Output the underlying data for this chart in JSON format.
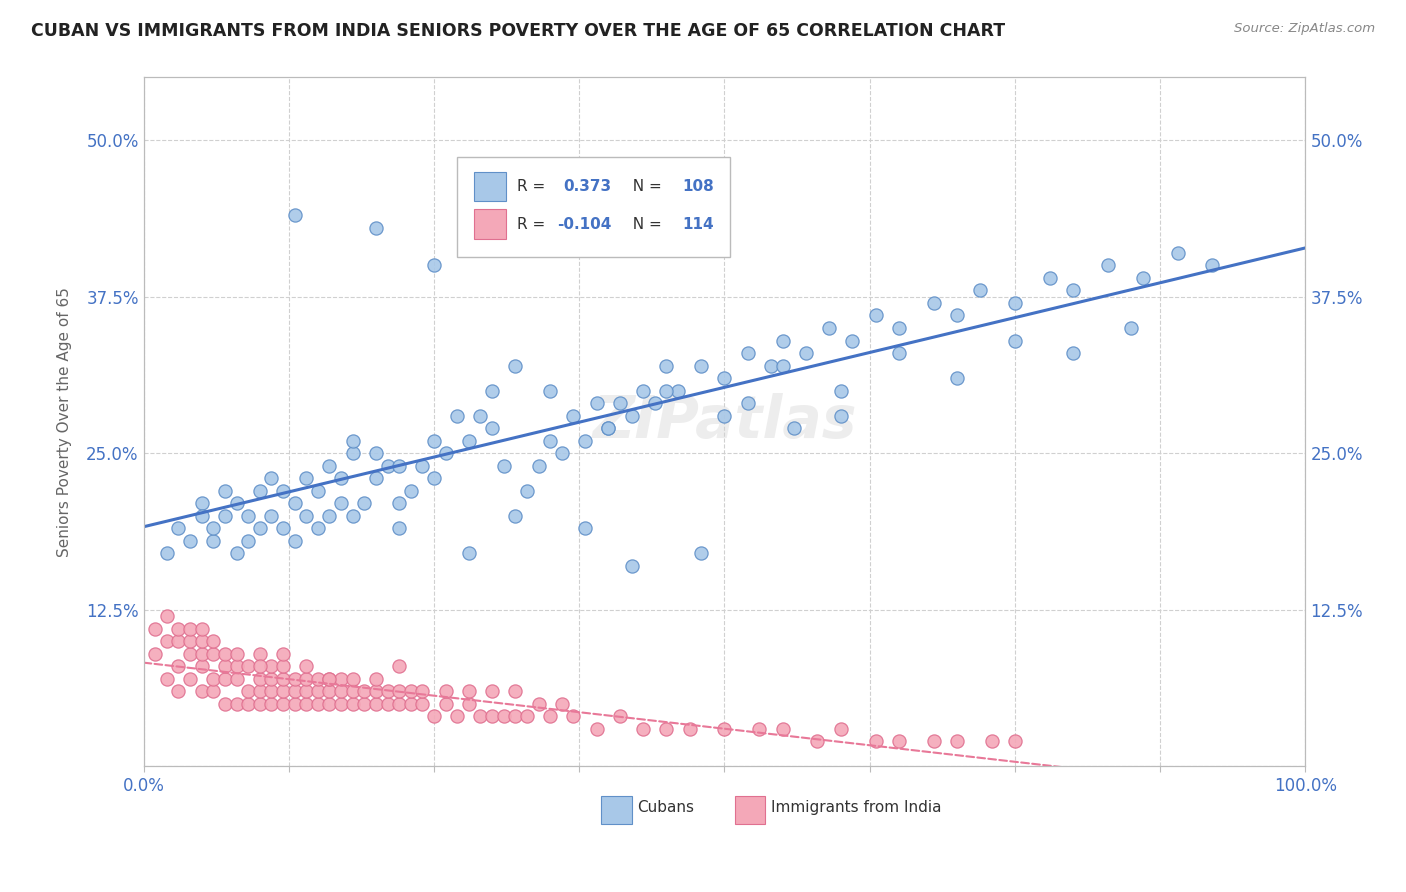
{
  "title": "CUBAN VS IMMIGRANTS FROM INDIA SENIORS POVERTY OVER THE AGE OF 65 CORRELATION CHART",
  "source_text": "Source: ZipAtlas.com",
  "ylabel": "Seniors Poverty Over the Age of 65",
  "xlim": [
    0.0,
    1.0
  ],
  "ylim": [
    0.0,
    0.55
  ],
  "xticks": [
    0.0,
    0.125,
    0.25,
    0.375,
    0.5,
    0.625,
    0.75,
    0.875,
    1.0
  ],
  "xticklabels": [
    "0.0%",
    "",
    "",
    "",
    "",
    "",
    "",
    "",
    "100.0%"
  ],
  "yticks": [
    0.0,
    0.125,
    0.25,
    0.375,
    0.5
  ],
  "yticklabels": [
    "",
    "12.5%",
    "25.0%",
    "37.5%",
    "50.0%"
  ],
  "watermark": "ZIPatlas",
  "legend_label1": "Cubans",
  "legend_label2": "Immigrants from India",
  "cuban_color": "#a8c8e8",
  "india_color": "#f4a8b8",
  "cuban_edge_color": "#6090c8",
  "india_edge_color": "#e07090",
  "cuban_line_color": "#4472c4",
  "india_line_color": "#e87898",
  "background_color": "#ffffff",
  "grid_color": "#d0d0d0",
  "title_color": "#222222",
  "axis_label_color": "#666666",
  "tick_label_color": "#4472c4",
  "r1_val": "0.373",
  "n1_val": "108",
  "r2_val": "-0.104",
  "n2_val": "114",
  "cuban_scatter_x": [
    0.02,
    0.03,
    0.04,
    0.05,
    0.05,
    0.06,
    0.06,
    0.07,
    0.07,
    0.08,
    0.08,
    0.09,
    0.09,
    0.1,
    0.1,
    0.11,
    0.11,
    0.12,
    0.12,
    0.13,
    0.13,
    0.14,
    0.14,
    0.15,
    0.15,
    0.16,
    0.16,
    0.17,
    0.17,
    0.18,
    0.18,
    0.19,
    0.2,
    0.2,
    0.21,
    0.22,
    0.22,
    0.23,
    0.24,
    0.25,
    0.25,
    0.26,
    0.27,
    0.28,
    0.29,
    0.3,
    0.3,
    0.31,
    0.32,
    0.33,
    0.34,
    0.35,
    0.36,
    0.37,
    0.38,
    0.39,
    0.4,
    0.41,
    0.42,
    0.43,
    0.44,
    0.45,
    0.46,
    0.48,
    0.5,
    0.52,
    0.54,
    0.55,
    0.57,
    0.59,
    0.61,
    0.63,
    0.65,
    0.68,
    0.7,
    0.72,
    0.75,
    0.78,
    0.8,
    0.83,
    0.86,
    0.89,
    0.92,
    0.2,
    0.25,
    0.3,
    0.35,
    0.4,
    0.45,
    0.5,
    0.55,
    0.6,
    0.65,
    0.7,
    0.75,
    0.8,
    0.85,
    0.13,
    0.18,
    0.22,
    0.28,
    0.32,
    0.38,
    0.42,
    0.48,
    0.52,
    0.56,
    0.6
  ],
  "cuban_scatter_y": [
    0.17,
    0.19,
    0.18,
    0.21,
    0.2,
    0.18,
    0.19,
    0.22,
    0.2,
    0.17,
    0.21,
    0.18,
    0.2,
    0.22,
    0.19,
    0.2,
    0.23,
    0.19,
    0.22,
    0.18,
    0.21,
    0.2,
    0.23,
    0.19,
    0.22,
    0.2,
    0.24,
    0.21,
    0.23,
    0.2,
    0.25,
    0.21,
    0.23,
    0.25,
    0.24,
    0.21,
    0.24,
    0.22,
    0.24,
    0.23,
    0.26,
    0.25,
    0.28,
    0.26,
    0.28,
    0.27,
    0.3,
    0.24,
    0.32,
    0.22,
    0.24,
    0.26,
    0.25,
    0.28,
    0.26,
    0.29,
    0.27,
    0.29,
    0.28,
    0.3,
    0.29,
    0.32,
    0.3,
    0.32,
    0.31,
    0.33,
    0.32,
    0.34,
    0.33,
    0.35,
    0.34,
    0.36,
    0.35,
    0.37,
    0.36,
    0.38,
    0.37,
    0.39,
    0.38,
    0.4,
    0.39,
    0.41,
    0.4,
    0.43,
    0.4,
    0.44,
    0.3,
    0.27,
    0.3,
    0.28,
    0.32,
    0.3,
    0.33,
    0.31,
    0.34,
    0.33,
    0.35,
    0.44,
    0.26,
    0.19,
    0.17,
    0.2,
    0.19,
    0.16,
    0.17,
    0.29,
    0.27,
    0.28
  ],
  "india_scatter_x": [
    0.01,
    0.01,
    0.02,
    0.02,
    0.02,
    0.03,
    0.03,
    0.03,
    0.03,
    0.04,
    0.04,
    0.04,
    0.04,
    0.05,
    0.05,
    0.05,
    0.05,
    0.05,
    0.06,
    0.06,
    0.06,
    0.06,
    0.07,
    0.07,
    0.07,
    0.07,
    0.08,
    0.08,
    0.08,
    0.08,
    0.09,
    0.09,
    0.09,
    0.1,
    0.1,
    0.1,
    0.1,
    0.11,
    0.11,
    0.11,
    0.11,
    0.12,
    0.12,
    0.12,
    0.12,
    0.13,
    0.13,
    0.13,
    0.14,
    0.14,
    0.14,
    0.15,
    0.15,
    0.15,
    0.16,
    0.16,
    0.16,
    0.17,
    0.17,
    0.17,
    0.18,
    0.18,
    0.19,
    0.19,
    0.2,
    0.2,
    0.21,
    0.21,
    0.22,
    0.22,
    0.23,
    0.23,
    0.24,
    0.25,
    0.26,
    0.27,
    0.28,
    0.29,
    0.3,
    0.31,
    0.32,
    0.33,
    0.35,
    0.37,
    0.39,
    0.41,
    0.43,
    0.45,
    0.47,
    0.5,
    0.53,
    0.55,
    0.58,
    0.6,
    0.63,
    0.65,
    0.68,
    0.7,
    0.73,
    0.75,
    0.1,
    0.12,
    0.14,
    0.16,
    0.18,
    0.2,
    0.22,
    0.24,
    0.26,
    0.28,
    0.3,
    0.32,
    0.34,
    0.36
  ],
  "india_scatter_y": [
    0.09,
    0.11,
    0.07,
    0.1,
    0.12,
    0.06,
    0.08,
    0.1,
    0.11,
    0.07,
    0.09,
    0.1,
    0.11,
    0.06,
    0.08,
    0.09,
    0.1,
    0.11,
    0.06,
    0.07,
    0.09,
    0.1,
    0.05,
    0.07,
    0.08,
    0.09,
    0.05,
    0.07,
    0.08,
    0.09,
    0.05,
    0.06,
    0.08,
    0.05,
    0.06,
    0.07,
    0.09,
    0.05,
    0.06,
    0.07,
    0.08,
    0.05,
    0.06,
    0.07,
    0.08,
    0.05,
    0.06,
    0.07,
    0.05,
    0.06,
    0.07,
    0.05,
    0.06,
    0.07,
    0.05,
    0.06,
    0.07,
    0.05,
    0.06,
    0.07,
    0.05,
    0.06,
    0.05,
    0.06,
    0.05,
    0.06,
    0.05,
    0.06,
    0.05,
    0.06,
    0.05,
    0.06,
    0.05,
    0.04,
    0.05,
    0.04,
    0.05,
    0.04,
    0.04,
    0.04,
    0.04,
    0.04,
    0.04,
    0.04,
    0.03,
    0.04,
    0.03,
    0.03,
    0.03,
    0.03,
    0.03,
    0.03,
    0.02,
    0.03,
    0.02,
    0.02,
    0.02,
    0.02,
    0.02,
    0.02,
    0.08,
    0.09,
    0.08,
    0.07,
    0.07,
    0.07,
    0.08,
    0.06,
    0.06,
    0.06,
    0.06,
    0.06,
    0.05,
    0.05
  ]
}
